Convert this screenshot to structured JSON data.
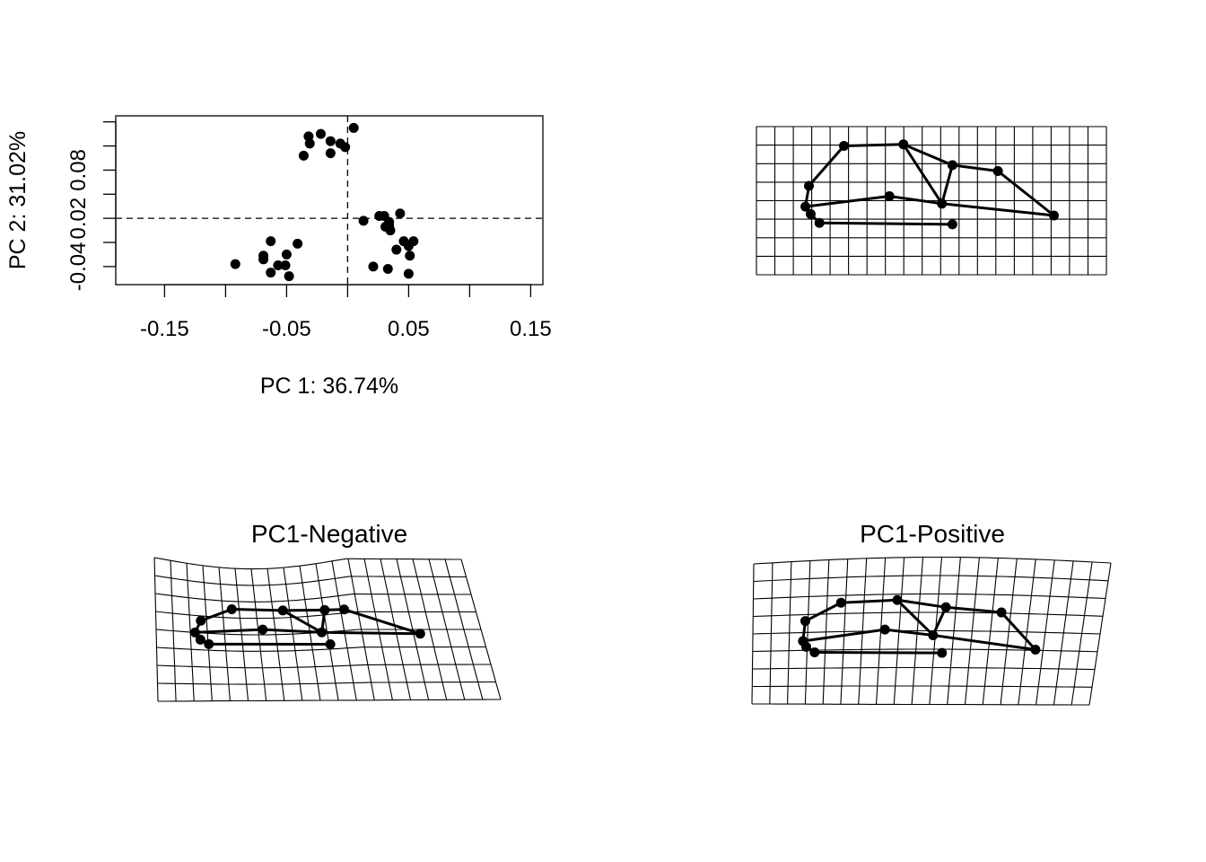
{
  "chart_data": [
    {
      "type": "scatter",
      "title": "",
      "xlabel": "PC 1: 36.74%",
      "ylabel": "PC 2: 31.02%",
      "xlim": [
        -0.19,
        0.16
      ],
      "ylim": [
        -0.055,
        0.085
      ],
      "xticks": [
        -0.15,
        -0.1,
        -0.05,
        0.0,
        0.05,
        0.1,
        0.15
      ],
      "xtick_labels": [
        "-0.15",
        "",
        "-0.05",
        "",
        "0.05",
        "",
        "0.15"
      ],
      "yticks": [
        -0.04,
        -0.02,
        0.0,
        0.02,
        0.04,
        0.06,
        0.08
      ],
      "ytick_labels": [
        "-0.04",
        "",
        "0.02",
        "",
        "0.08",
        "",
        ""
      ],
      "reference_lines": {
        "x": 0,
        "y": 0,
        "style": "dashed"
      },
      "grid": false,
      "series": [
        {
          "points": [
            {
              "x": 0.005,
              "y": 0.075
            },
            {
              "x": -0.032,
              "y": 0.068
            },
            {
              "x": -0.022,
              "y": 0.07
            },
            {
              "x": -0.014,
              "y": 0.064
            },
            {
              "x": -0.006,
              "y": 0.062
            },
            {
              "x": -0.031,
              "y": 0.062
            },
            {
              "x": -0.002,
              "y": 0.059
            },
            {
              "x": -0.036,
              "y": 0.052
            },
            {
              "x": -0.014,
              "y": 0.054
            },
            {
              "x": 0.026,
              "y": 0.002
            },
            {
              "x": 0.03,
              "y": 0.002
            },
            {
              "x": 0.043,
              "y": 0.004
            },
            {
              "x": 0.013,
              "y": -0.002
            },
            {
              "x": 0.034,
              "y": -0.003
            },
            {
              "x": 0.034,
              "y": -0.006
            },
            {
              "x": 0.031,
              "y": -0.007
            },
            {
              "x": 0.035,
              "y": -0.01
            },
            {
              "x": 0.046,
              "y": -0.019
            },
            {
              "x": 0.054,
              "y": -0.019
            },
            {
              "x": 0.05,
              "y": -0.023
            },
            {
              "x": 0.04,
              "y": -0.026
            },
            {
              "x": 0.051,
              "y": -0.031
            },
            {
              "x": -0.063,
              "y": -0.019
            },
            {
              "x": -0.041,
              "y": -0.021
            },
            {
              "x": -0.069,
              "y": -0.031
            },
            {
              "x": -0.069,
              "y": -0.034
            },
            {
              "x": -0.05,
              "y": -0.03
            },
            {
              "x": -0.057,
              "y": -0.039
            },
            {
              "x": -0.051,
              "y": -0.039
            },
            {
              "x": -0.092,
              "y": -0.038
            },
            {
              "x": -0.063,
              "y": -0.045
            },
            {
              "x": -0.048,
              "y": -0.048
            },
            {
              "x": 0.021,
              "y": -0.04
            },
            {
              "x": 0.033,
              "y": -0.042
            },
            {
              "x": 0.05,
              "y": -0.046
            }
          ]
        }
      ]
    },
    {
      "type": "diagram",
      "title": "",
      "description_shape": "mean-shape",
      "grid_cols": 19,
      "grid_rows": 8,
      "landmarks": [
        {
          "x": 0.15,
          "y": 0.6
        },
        {
          "x": 0.25,
          "y": 0.87
        },
        {
          "x": 0.42,
          "y": 0.88
        },
        {
          "x": 0.56,
          "y": 0.74
        },
        {
          "x": 0.69,
          "y": 0.7
        },
        {
          "x": 0.85,
          "y": 0.4
        },
        {
          "x": 0.53,
          "y": 0.48
        },
        {
          "x": 0.38,
          "y": 0.53
        },
        {
          "x": 0.14,
          "y": 0.46
        },
        {
          "x": 0.155,
          "y": 0.41
        },
        {
          "x": 0.18,
          "y": 0.35
        },
        {
          "x": 0.56,
          "y": 0.34
        }
      ]
    },
    {
      "type": "diagram",
      "title": "PC1-Negative",
      "grid_cols": 19,
      "grid_rows": 8,
      "warp": "negative",
      "landmarks": [
        {
          "x": 0.14,
          "y": 0.59
        },
        {
          "x": 0.24,
          "y": 0.69
        },
        {
          "x": 0.4,
          "y": 0.68
        },
        {
          "x": 0.53,
          "y": 0.66
        },
        {
          "x": 0.59,
          "y": 0.65
        },
        {
          "x": 0.81,
          "y": 0.47
        },
        {
          "x": 0.51,
          "y": 0.5
        },
        {
          "x": 0.33,
          "y": 0.54
        },
        {
          "x": 0.12,
          "y": 0.5
        },
        {
          "x": 0.135,
          "y": 0.45
        },
        {
          "x": 0.16,
          "y": 0.42
        },
        {
          "x": 0.53,
          "y": 0.41
        }
      ]
    },
    {
      "type": "diagram",
      "title": "PC1-Positive",
      "grid_cols": 19,
      "grid_rows": 8,
      "warp": "positive",
      "landmarks": [
        {
          "x": 0.15,
          "y": 0.58
        },
        {
          "x": 0.25,
          "y": 0.7
        },
        {
          "x": 0.41,
          "y": 0.71
        },
        {
          "x": 0.55,
          "y": 0.66
        },
        {
          "x": 0.71,
          "y": 0.63
        },
        {
          "x": 0.82,
          "y": 0.38
        },
        {
          "x": 0.52,
          "y": 0.47
        },
        {
          "x": 0.38,
          "y": 0.51
        },
        {
          "x": 0.145,
          "y": 0.44
        },
        {
          "x": 0.155,
          "y": 0.4
        },
        {
          "x": 0.18,
          "y": 0.36
        },
        {
          "x": 0.55,
          "y": 0.35
        }
      ]
    }
  ],
  "links": [
    [
      0,
      1
    ],
    [
      1,
      2
    ],
    [
      2,
      3
    ],
    [
      3,
      4
    ],
    [
      4,
      5
    ],
    [
      5,
      6
    ],
    [
      6,
      7
    ],
    [
      7,
      8
    ],
    [
      8,
      0
    ],
    [
      8,
      9
    ],
    [
      9,
      10
    ],
    [
      10,
      11
    ],
    [
      2,
      6
    ],
    [
      3,
      6
    ]
  ]
}
